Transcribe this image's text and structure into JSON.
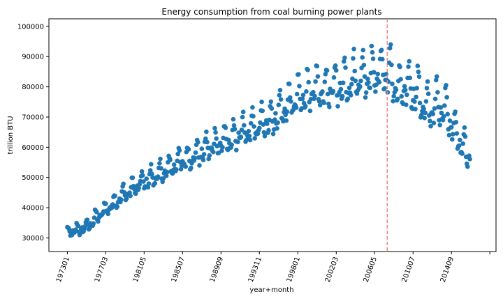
{
  "chart_data": {
    "type": "scatter",
    "title": "Energy consumption from coal burning power plants",
    "xlabel": "year+month",
    "ylabel": "trillion BTU",
    "marker_color": "#1f77b4",
    "vline": {
      "position": 2007.7,
      "color": "#f08080",
      "style": "dashed"
    },
    "x_ticks": [
      {
        "label": "197301",
        "value": 1973.0
      },
      {
        "label": "197703",
        "value": 1977.17
      },
      {
        "label": "198105",
        "value": 1981.33
      },
      {
        "label": "198507",
        "value": 1985.5
      },
      {
        "label": "198909",
        "value": 1989.67
      },
      {
        "label": "199311",
        "value": 1993.83
      },
      {
        "label": "199801",
        "value": 1998.0
      },
      {
        "label": "200203",
        "value": 2002.17
      },
      {
        "label": "200605",
        "value": 2006.33
      },
      {
        "label": "201007",
        "value": 2010.5
      },
      {
        "label": "201409",
        "value": 2014.67
      },
      {
        "label": "",
        "value": 2018.83
      }
    ],
    "y_ticks": [
      30000,
      40000,
      50000,
      60000,
      70000,
      80000,
      90000,
      100000
    ],
    "xlim": [
      1971.0,
      2019.5
    ],
    "ylim": [
      25500,
      102500
    ],
    "grid": false,
    "trend": [
      [
        1973.0,
        31500
      ],
      [
        1975.0,
        33500
      ],
      [
        1977.0,
        39000
      ],
      [
        1979.0,
        44000
      ],
      [
        1981.0,
        48000
      ],
      [
        1983.0,
        51000
      ],
      [
        1985.0,
        55000
      ],
      [
        1987.0,
        57500
      ],
      [
        1989.0,
        61000
      ],
      [
        1991.0,
        63000
      ],
      [
        1993.0,
        66000
      ],
      [
        1995.0,
        69000
      ],
      [
        1997.0,
        74000
      ],
      [
        1999.0,
        78000
      ],
      [
        2001.0,
        79000
      ],
      [
        2003.0,
        81000
      ],
      [
        2005.0,
        83500
      ],
      [
        2007.0,
        85000
      ],
      [
        2008.0,
        84000
      ],
      [
        2009.0,
        78000
      ],
      [
        2010.0,
        80000
      ],
      [
        2011.0,
        78000
      ],
      [
        2012.0,
        72000
      ],
      [
        2013.0,
        74000
      ],
      [
        2014.0,
        73000
      ],
      [
        2015.0,
        66000
      ],
      [
        2016.0,
        59000
      ],
      [
        2017.0,
        57000
      ]
    ]
  }
}
